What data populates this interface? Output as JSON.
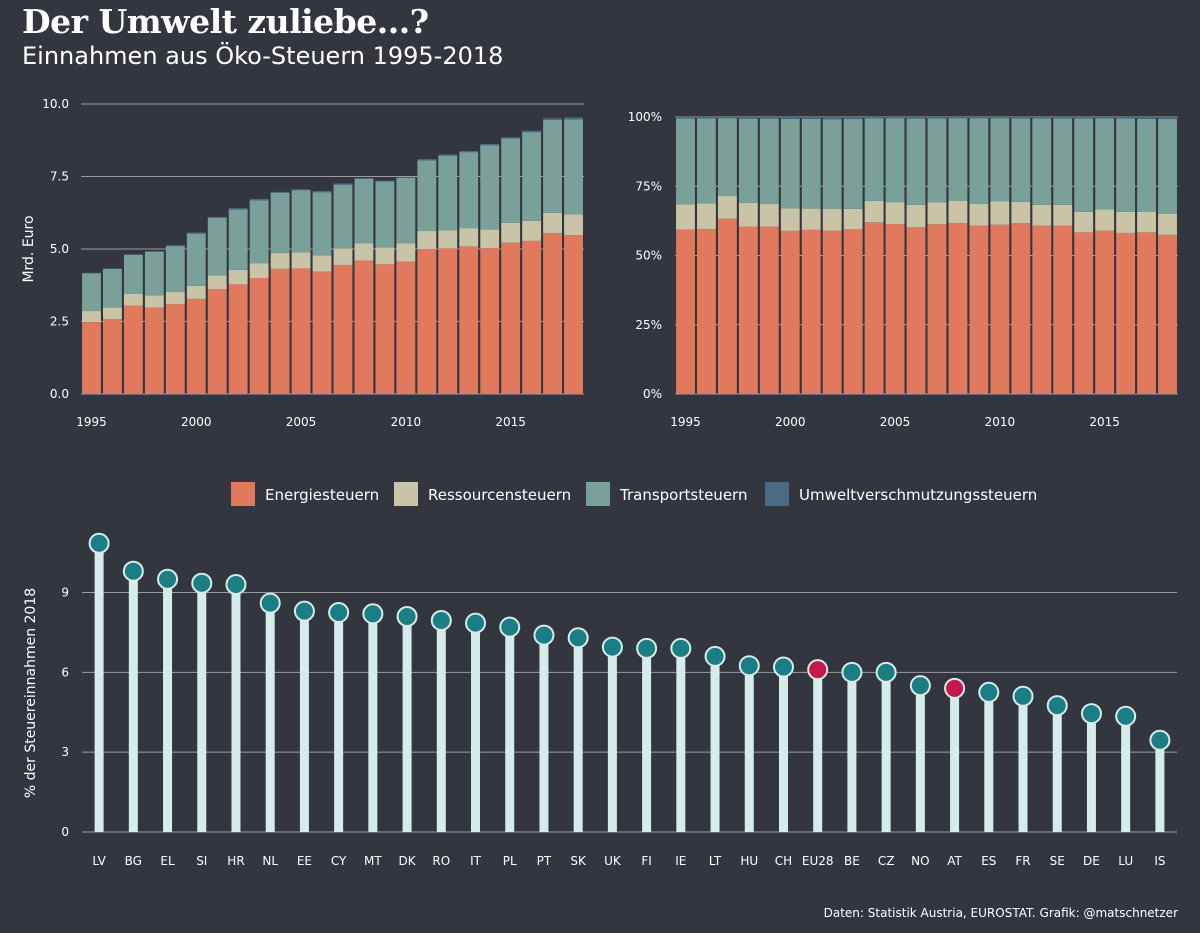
{
  "title": "Der Umwelt zuliebe...?",
  "subtitle": "Einnahmen aus Öko-Steuern 1995-2018",
  "caption": "Daten: Statistik Austria, EUROSTAT. Grafik: @matschnetzer",
  "colors": {
    "Energiesteuern": "#e17a5c",
    "Ressourcensteuern": "#c9c4a8",
    "Transportsteuern": "#7aa09a",
    "Umweltverschmutzungssteuern": "#4d6a85",
    "lollipop_default": "#1a7e84",
    "lollipop_highlight": "#c8174b",
    "stem": "#d6ecea",
    "grid": "#9a9ca2",
    "background": "#33363e",
    "text": "#ffffff"
  },
  "legend": [
    "Energiesteuern",
    "Ressourcensteuern",
    "Transportsteuern",
    "Umweltverschmutzungssteuern"
  ],
  "chart_data": [
    {
      "type": "bar",
      "stacked": true,
      "ylabel": "Mrd. Euro",
      "xlabel": "",
      "ylim": [
        0,
        10
      ],
      "yticks": [
        "0.0",
        "2.5",
        "5.0",
        "7.5",
        "10.0"
      ],
      "xticks": [
        "1995",
        "2000",
        "2005",
        "2010",
        "2015"
      ],
      "categories": [
        1995,
        1996,
        1997,
        1998,
        1999,
        2000,
        2001,
        2002,
        2003,
        2004,
        2005,
        2006,
        2007,
        2008,
        2009,
        2010,
        2011,
        2012,
        2013,
        2014,
        2015,
        2016,
        2017,
        2018
      ],
      "series": [
        {
          "name": "Energiesteuern",
          "values": [
            2.48,
            2.58,
            3.05,
            2.98,
            3.1,
            3.28,
            3.62,
            3.78,
            4.0,
            4.32,
            4.33,
            4.22,
            4.45,
            4.6,
            4.47,
            4.57,
            5.0,
            5.02,
            5.09,
            5.03,
            5.22,
            5.28,
            5.55,
            5.48
          ]
        },
        {
          "name": "Ressourcensteuern",
          "values": [
            0.38,
            0.4,
            0.4,
            0.42,
            0.42,
            0.45,
            0.47,
            0.5,
            0.5,
            0.54,
            0.56,
            0.56,
            0.57,
            0.6,
            0.58,
            0.63,
            0.62,
            0.62,
            0.63,
            0.64,
            0.68,
            0.69,
            0.7,
            0.72
          ]
        },
        {
          "name": "Transportsteuern",
          "values": [
            1.3,
            1.33,
            1.35,
            1.5,
            1.58,
            1.8,
            1.98,
            2.08,
            2.18,
            2.08,
            2.14,
            2.18,
            2.2,
            2.22,
            2.28,
            2.25,
            2.44,
            2.58,
            2.62,
            2.91,
            2.91,
            3.06,
            3.2,
            3.27
          ]
        },
        {
          "name": "Umweltverschmutzungssteuern",
          "values": [
            0.02,
            0.02,
            0.02,
            0.03,
            0.03,
            0.04,
            0.04,
            0.05,
            0.05,
            0.03,
            0.03,
            0.04,
            0.04,
            0.03,
            0.03,
            0.03,
            0.04,
            0.04,
            0.04,
            0.04,
            0.04,
            0.05,
            0.06,
            0.07
          ]
        }
      ]
    },
    {
      "type": "bar",
      "stacked": true,
      "normalized": true,
      "ylabel": "",
      "xlabel": "",
      "ylim": [
        0,
        1
      ],
      "yticks": [
        "0%",
        "25%",
        "50%",
        "75%",
        "100%"
      ],
      "xticks": [
        "1995",
        "2000",
        "2005",
        "2010",
        "2015"
      ],
      "categories": [
        1995,
        1996,
        1997,
        1998,
        1999,
        2000,
        2001,
        2002,
        2003,
        2004,
        2005,
        2006,
        2007,
        2008,
        2009,
        2010,
        2011,
        2012,
        2013,
        2014,
        2015,
        2016,
        2017,
        2018
      ],
      "note": "Shares computed from the absolute values of the first chart"
    },
    {
      "type": "scatter",
      "subtype": "lollipop",
      "ylabel": "% der Steuereinnahmen 2018",
      "xlabel": "",
      "ylim": [
        0,
        11.5
      ],
      "yticks": [
        "0",
        "3",
        "6",
        "9"
      ],
      "categories": [
        "LV",
        "BG",
        "EL",
        "SI",
        "HR",
        "NL",
        "EE",
        "CY",
        "MT",
        "DK",
        "RO",
        "IT",
        "PL",
        "PT",
        "SK",
        "UK",
        "FI",
        "IE",
        "LT",
        "HU",
        "CH",
        "EU28",
        "BE",
        "CZ",
        "NO",
        "AT",
        "ES",
        "FR",
        "SE",
        "DE",
        "LU",
        "IS"
      ],
      "values": [
        10.85,
        9.8,
        9.5,
        9.35,
        9.3,
        8.6,
        8.3,
        8.25,
        8.2,
        8.1,
        7.95,
        7.85,
        7.7,
        7.4,
        7.3,
        6.95,
        6.9,
        6.9,
        6.6,
        6.25,
        6.2,
        6.1,
        6.0,
        6.0,
        5.5,
        5.4,
        5.25,
        5.1,
        4.75,
        4.45,
        4.35,
        3.45
      ],
      "highlight": [
        "EU28",
        "AT"
      ]
    }
  ]
}
